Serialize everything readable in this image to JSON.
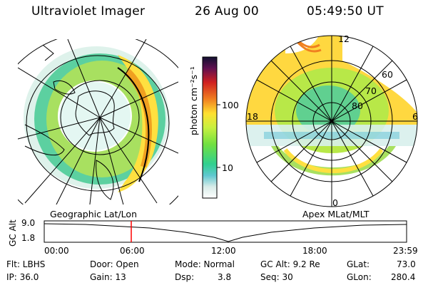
{
  "header": {
    "title": "Ultraviolet Imager",
    "date": "26 Aug 00",
    "time": "05:49:50 UT"
  },
  "left_panel": {
    "caption": "Geographic Lat/Lon"
  },
  "right_panel": {
    "caption": "Apex MLat/MLT",
    "mlt_labels": {
      "top": "12",
      "left": "18",
      "right": "6",
      "bottom": "0"
    },
    "lat_labels": [
      "60",
      "70",
      "80"
    ]
  },
  "colorbar": {
    "unit_label": "photon cm⁻²s⁻¹",
    "ticks": [
      "100",
      "10"
    ],
    "scale": "log"
  },
  "orbit_plot": {
    "ylabel": "GC Alt",
    "ymax_label": "9.0",
    "ymin_label": "1.8",
    "time_ticks": [
      "00:00",
      "06:00",
      "12:00",
      "18:00",
      "23:59"
    ],
    "marker_time": "05:49:50",
    "marker_color": "#ff0000"
  },
  "info": {
    "filter": "Flt: LBHS",
    "ip": "IP: 36.0",
    "door": "Door: Open",
    "gain": "Gain: 13",
    "mode": "Mode: Normal",
    "dsp_key": "Dsp:",
    "dsp_val": "3.8",
    "gc_alt": "GC Alt: 9.2 Re",
    "seq": "Seq: 30",
    "glat_key": "GLat:",
    "glat_val": "73.0",
    "glon_key": "GLon:",
    "glon_val": "280.4"
  }
}
